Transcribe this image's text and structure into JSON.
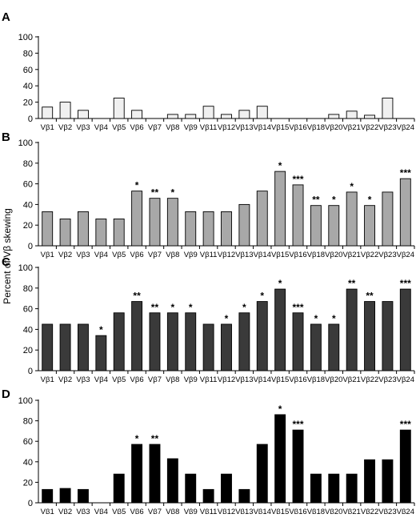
{
  "ylabel": "Percent of Vβ skewing",
  "categories": [
    "Vβ1",
    "Vβ2",
    "Vβ3",
    "Vβ4",
    "Vβ5",
    "Vβ6",
    "Vβ7",
    "Vβ8",
    "Vβ9",
    "Vβ11",
    "Vβ12",
    "Vβ13",
    "Vβ14",
    "Vβ15",
    "Vβ16",
    "Vβ18",
    "Vβ20",
    "Vβ21",
    "Vβ22",
    "Vβ23",
    "Vβ24"
  ],
  "chart_data": [
    {
      "type": "bar",
      "panel": "A",
      "fill": "#f0f0f0",
      "ylim": [
        0,
        100
      ],
      "yticks": [
        0,
        20,
        40,
        60,
        80,
        100
      ],
      "values": [
        14,
        20,
        10,
        0,
        25,
        10,
        0,
        5,
        5,
        15,
        5,
        10,
        15,
        0,
        0,
        0,
        5,
        9,
        4,
        25,
        0
      ],
      "annotations": [
        "",
        "",
        "",
        "",
        "",
        "",
        "",
        "",
        "",
        "",
        "",
        "",
        "",
        "",
        "",
        "",
        "",
        "",
        "",
        "",
        ""
      ]
    },
    {
      "type": "bar",
      "panel": "B",
      "fill": "#a8a8a8",
      "ylim": [
        0,
        100
      ],
      "yticks": [
        0,
        20,
        40,
        60,
        80,
        100
      ],
      "values": [
        33,
        26,
        33,
        26,
        26,
        53,
        46,
        46,
        33,
        33,
        33,
        40,
        53,
        72,
        59,
        39,
        39,
        52,
        39,
        52,
        65
      ],
      "annotations": [
        "",
        "",
        "",
        "",
        "",
        "*",
        "**",
        "*",
        "",
        "",
        "",
        "",
        "",
        "*",
        "***",
        "**",
        "*",
        "*",
        "*",
        "",
        "***"
      ]
    },
    {
      "type": "bar",
      "panel": "C",
      "fill": "#3a3a3a",
      "ylim": [
        0,
        100
      ],
      "yticks": [
        0,
        20,
        40,
        60,
        80,
        100
      ],
      "values": [
        45,
        45,
        45,
        34,
        56,
        67,
        56,
        56,
        56,
        45,
        45,
        56,
        67,
        79,
        56,
        45,
        45,
        79,
        67,
        67,
        79
      ],
      "annotations": [
        "",
        "",
        "",
        "*",
        "",
        "**",
        "**",
        "*",
        "*",
        "",
        "*",
        "*",
        "*",
        "*",
        "***",
        "*",
        "*",
        "**",
        "**",
        "",
        "***"
      ]
    },
    {
      "type": "bar",
      "panel": "D",
      "fill": "#000000",
      "ylim": [
        0,
        100
      ],
      "yticks": [
        0,
        20,
        40,
        60,
        80,
        100
      ],
      "values": [
        13,
        14,
        13,
        0,
        28,
        57,
        57,
        43,
        28,
        13,
        28,
        13,
        57,
        86,
        71,
        28,
        28,
        28,
        42,
        42,
        71
      ],
      "annotations": [
        "",
        "",
        "",
        "",
        "",
        "*",
        "**",
        "",
        "",
        "",
        "",
        "",
        "",
        "*",
        "***",
        "",
        "",
        "",
        "",
        "",
        "***"
      ]
    }
  ]
}
